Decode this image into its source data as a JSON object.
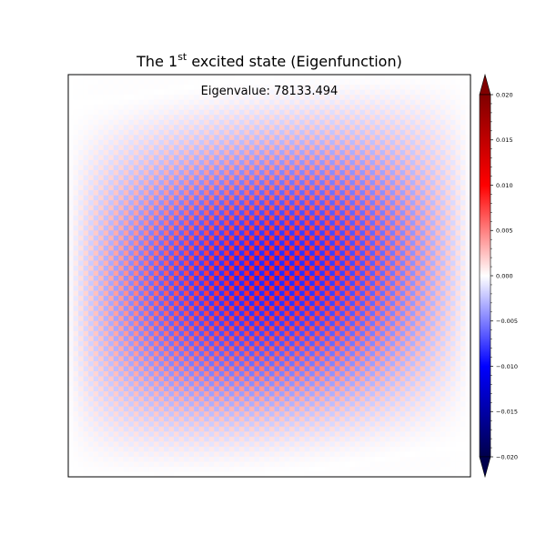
{
  "chart_data": {
    "type": "heatmap",
    "title_prefix": "The 1",
    "title_superscript": "st",
    "title_suffix": " excited state (Eigenfunction)",
    "annotation": "Eigenvalue: 78133.494",
    "xlabel": "",
    "ylabel": "",
    "axis_ticks_visible": false,
    "grid": false,
    "colormap": "seismic",
    "colorbar": {
      "location": "right",
      "extend": "both",
      "range": [
        -0.02,
        0.02
      ],
      "ticks": [
        0.02,
        0.015,
        0.01,
        0.005,
        0.0,
        -0.005,
        -0.01,
        -0.015,
        -0.02
      ],
      "tick_labels": [
        "0.020",
        "0.015",
        "0.010",
        "0.005",
        "0.000",
        "−0.005",
        "−0.010",
        "−0.015",
        "−0.020"
      ]
    },
    "field": {
      "description_values": "fine checkerboard oscillation whose amplitude envelope has two lobes (upper-right and lower-left) separated by a tilted nodal line",
      "max_amplitude": 0.0085,
      "grid_cells": 80,
      "nodal_line_tilt": 0.16
    }
  }
}
